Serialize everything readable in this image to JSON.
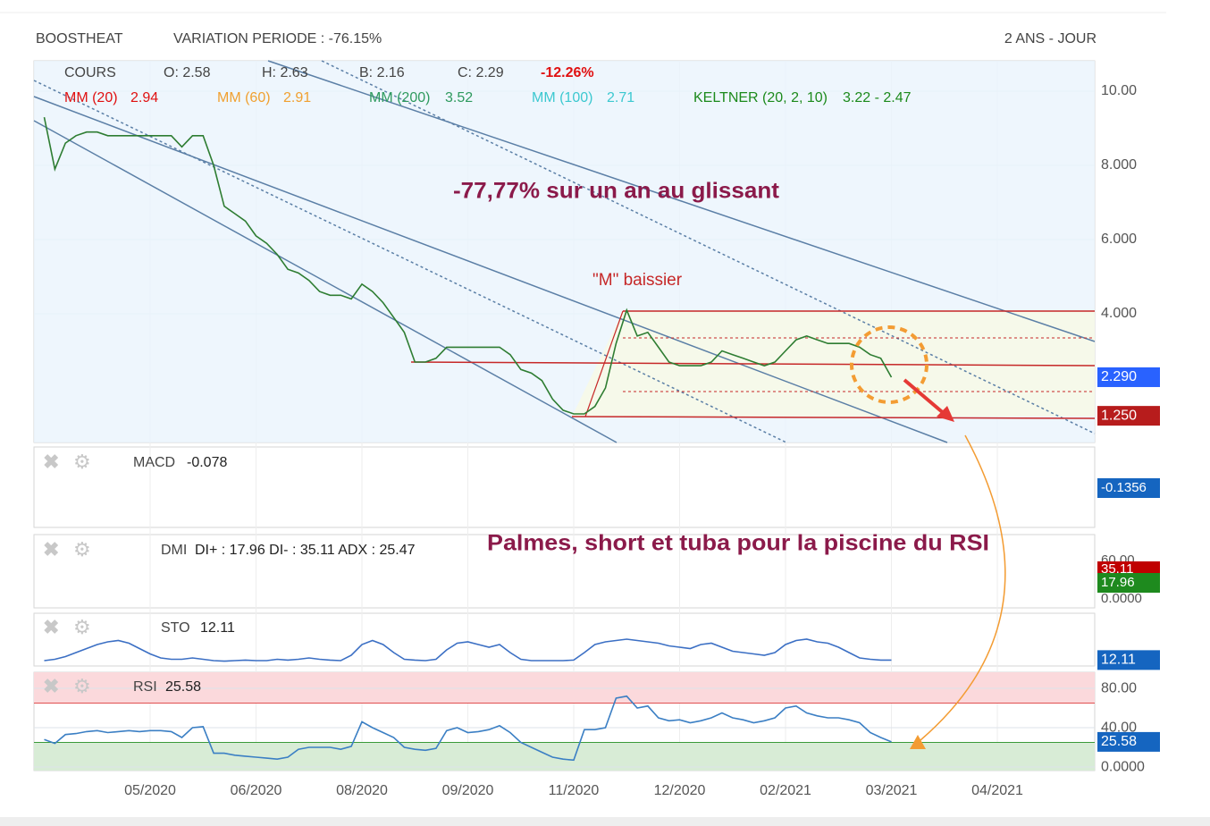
{
  "header": {
    "symbol": "BOOSTHEAT",
    "variation": "VARIATION PERIODE : -76.15%",
    "period": "2 ANS - JOUR"
  },
  "legend": {
    "cours": "COURS",
    "open": "O: 2.58",
    "high": "H: 2.63",
    "low": "B: 2.16",
    "close": "C: 2.29",
    "change": "-12.26%",
    "mm20": {
      "name": "MM (20)",
      "value": "2.94"
    },
    "mm60": {
      "name": "MM (60)",
      "value": "2.91"
    },
    "mm200": {
      "name": "MM (200)",
      "value": "3.52"
    },
    "mm100": {
      "name": "MM (100)",
      "value": "2.71"
    },
    "keltner": {
      "name": "KELTNER (20, 2, 10)",
      "value": "3.22 - 2.47"
    }
  },
  "annotations": [
    "-77,77% sur un an au glissant",
    "\"M\" baissier",
    "Palmes, short et tuba pour la piscine du RSI"
  ],
  "indicators": {
    "macd": {
      "name": "MACD",
      "value": "-0.078",
      "badge": "-0.1356"
    },
    "dmi": {
      "name": "DMI",
      "value": "DI+ : 17.96 DI- : 35.11 ADX : 25.47",
      "axis": [
        "60.00",
        "0.0000"
      ],
      "badges": [
        "35.11",
        "17.96"
      ]
    },
    "sto": {
      "name": "STO",
      "value": "12.11"
    },
    "rsi": {
      "name": "RSI",
      "value": "25.58"
    }
  },
  "chart_data": [
    {
      "type": "line",
      "categories": [
        null,
        null,
        null,
        null,
        null,
        null,
        null,
        null,
        null,
        null,
        "05/2020",
        null,
        null,
        null,
        null,
        null,
        null,
        null,
        null,
        null,
        "06/2020",
        null,
        null,
        null,
        null,
        null,
        null,
        null,
        null,
        null,
        "08/2020",
        null,
        null,
        null,
        null,
        null,
        null,
        null,
        null,
        null,
        "09/2020",
        null,
        null,
        null,
        null,
        null,
        null,
        null,
        null,
        null,
        "11/2020",
        null,
        null,
        null,
        null,
        null,
        null,
        null,
        null,
        null,
        "12/2020",
        null,
        null,
        null,
        null,
        null,
        null,
        null,
        null,
        null,
        "02/2021",
        null,
        null,
        null,
        null,
        null,
        null,
        null,
        null,
        null,
        "03/2021",
        null,
        null,
        null,
        null,
        null,
        null,
        null,
        null,
        null,
        "04/2021",
        null,
        null,
        null,
        null,
        null,
        null,
        null,
        null,
        null
      ],
      "series": [
        {
          "name": "COURS",
          "color": "#2e7d32",
          "values": [
            9.3,
            7.9,
            8.6,
            8.8,
            8.9,
            8.9,
            8.8,
            8.8,
            8.8,
            8.8,
            8.8,
            8.8,
            8.8,
            8.5,
            8.8,
            8.8,
            8.0,
            6.9,
            6.7,
            6.5,
            6.1,
            5.9,
            5.6,
            5.2,
            5.1,
            4.9,
            4.6,
            4.5,
            4.5,
            4.4,
            4.8,
            4.6,
            4.3,
            3.9,
            3.5,
            2.7,
            2.7,
            2.8,
            3.1,
            3.1,
            3.1,
            3.1,
            3.1,
            3.1,
            2.9,
            2.5,
            2.4,
            2.2,
            1.7,
            1.4,
            1.3,
            1.3,
            1.5,
            2.0,
            3.2,
            4.1,
            3.4,
            3.5,
            3.1,
            2.7,
            2.6,
            2.6,
            2.6,
            2.7,
            3.0,
            2.9,
            2.8,
            2.7,
            2.6,
            2.7,
            3.0,
            3.3,
            3.4,
            3.3,
            3.2,
            3.2,
            3.2,
            3.1,
            2.9,
            2.8,
            2.29,
            null,
            null,
            null,
            null,
            null,
            null,
            null,
            null,
            null,
            null,
            null,
            null,
            null,
            null,
            null,
            null,
            null,
            null,
            null
          ]
        }
      ],
      "ylim": [
        0.53,
        10.82
      ],
      "yticks": [
        {
          "value": 10,
          "label": "10.00"
        },
        {
          "value": 8,
          "label": "8.000"
        },
        {
          "value": 6,
          "label": "6.000"
        },
        {
          "value": 4,
          "label": "4.000"
        }
      ],
      "badges": [
        {
          "value": 2.29,
          "label": "2.290",
          "color": "#2962ff"
        },
        {
          "value": 1.25,
          "label": "1.250",
          "color": "#b71c1c"
        }
      ],
      "grid": true
    },
    {
      "type": "line",
      "series": [
        {
          "name": "STO",
          "color": "#3b6fc4",
          "values": [
            10,
            15,
            25,
            40,
            55,
            70,
            80,
            85,
            75,
            55,
            35,
            20,
            15,
            15,
            20,
            15,
            10,
            8,
            10,
            12,
            10,
            10,
            15,
            12,
            15,
            20,
            15,
            12,
            10,
            30,
            70,
            85,
            70,
            40,
            15,
            12,
            10,
            15,
            50,
            75,
            80,
            70,
            60,
            70,
            40,
            15,
            10,
            10,
            10,
            10,
            12,
            40,
            70,
            80,
            85,
            90,
            85,
            80,
            75,
            65,
            60,
            55,
            70,
            75,
            60,
            45,
            40,
            35,
            30,
            40,
            70,
            85,
            90,
            80,
            75,
            60,
            40,
            20,
            15,
            12,
            12.11
          ]
        }
      ],
      "ylim": [
        -10,
        140
      ],
      "badges": [
        {
          "value": 12.11,
          "label": "12.11",
          "color": "#1565c0"
        }
      ]
    },
    {
      "type": "line",
      "series": [
        {
          "name": "RSI",
          "color": "#3b7fc4",
          "values": [
            28,
            24,
            33,
            34,
            36,
            37,
            35,
            36,
            37,
            36,
            37,
            37,
            36,
            30,
            40,
            41,
            14,
            14,
            12,
            11,
            10,
            9,
            8,
            10,
            18,
            20,
            20,
            20,
            18,
            21,
            46,
            40,
            35,
            30,
            20,
            18,
            17,
            19,
            37,
            40,
            35,
            36,
            38,
            42,
            35,
            25,
            20,
            15,
            10,
            8,
            7,
            38,
            38,
            40,
            70,
            72,
            60,
            62,
            50,
            47,
            48,
            45,
            47,
            50,
            55,
            50,
            48,
            45,
            47,
            50,
            60,
            62,
            55,
            52,
            50,
            50,
            48,
            45,
            35,
            30,
            25.58
          ]
        }
      ],
      "ylim": [
        -3.6,
        96.4
      ],
      "yticks": [
        {
          "value": 80,
          "label": "80.00"
        },
        {
          "value": 40,
          "label": "40.00"
        },
        {
          "value": 0,
          "label": "0.0000"
        }
      ],
      "bands": [
        65,
        25
      ],
      "badges": [
        {
          "value": 25.58,
          "label": "25.58",
          "color": "#1565c0"
        }
      ]
    }
  ]
}
